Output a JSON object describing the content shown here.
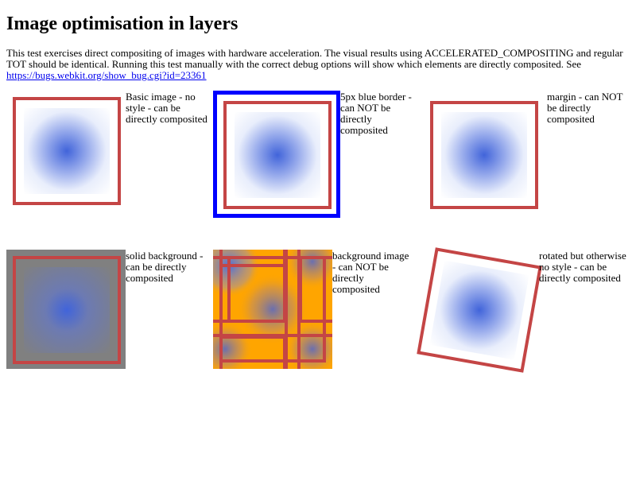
{
  "page": {
    "title": "Image optimisation in layers",
    "intro_text": "This test exercises direct compositing of images with hardware acceleration. The visual results using ACCELERATED_COMPOSITING and regular TOT should be identical. Running this test manually with the correct debug options will show which elements are directly composited. See ",
    "bug_link_text": "https://bugs.webkit.org/show_bug.cgi?id=23361"
  },
  "tests": [
    {
      "caption": "Basic image - no style - can be directly composited"
    },
    {
      "caption": "5px blue border - can NOT be directly composited"
    },
    {
      "caption": "margin - can NOT be directly composited"
    },
    {
      "caption": "solid background - can be directly composited"
    },
    {
      "caption": "background image - can NOT be directly composited"
    },
    {
      "caption": "rotated but otherwise no style - can be directly composited"
    }
  ],
  "colors": {
    "frame": "#c44545",
    "blue_border": "#0000ff",
    "solid_background": "#808080",
    "pattern_background": "#ffa500",
    "glow": "#4164da",
    "link": "#0000ee"
  }
}
